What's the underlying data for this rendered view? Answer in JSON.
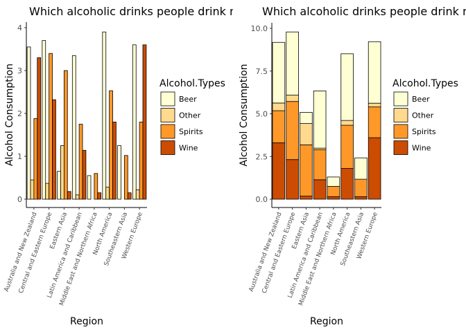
{
  "chart_data": [
    {
      "type": "bar",
      "position": "dodge",
      "title": "Which alcoholic drinks people drink most",
      "xlabel": "Region",
      "ylabel": "Alcohol Consumption",
      "ylim": [
        0,
        4
      ],
      "yticks": [
        "0",
        "1",
        "2",
        "3",
        "4"
      ],
      "categories": [
        "Australia and New Zealand",
        "Central and Eastern Europe",
        "Eastern Asia",
        "Latin America and Caribbean",
        "Middle East and Northern Africa",
        "North America",
        "Southeastern Asia",
        "Western Europe"
      ],
      "legend": {
        "title": "Alcohol.Types",
        "position": "right"
      },
      "series": [
        {
          "name": "Beer",
          "values": [
            3.55,
            3.7,
            0.65,
            3.35,
            0.55,
            3.9,
            1.25,
            3.6
          ]
        },
        {
          "name": "Other",
          "values": [
            0.45,
            0.37,
            1.25,
            0.1,
            0.0,
            0.28,
            0.0,
            0.22
          ]
        },
        {
          "name": "Spirits",
          "values": [
            1.88,
            3.4,
            3.0,
            1.75,
            0.6,
            2.53,
            1.02,
            1.8
          ]
        },
        {
          "name": "Wine",
          "values": [
            3.3,
            2.32,
            0.18,
            1.14,
            0.15,
            1.8,
            0.15,
            3.6
          ]
        }
      ]
    },
    {
      "type": "bar",
      "position": "stack",
      "title": "Which alcoholic drinks people drink most",
      "xlabel": "Region",
      "ylabel": "Alcohol Consumption",
      "ylim": [
        0,
        10
      ],
      "yticks": [
        "0.0",
        "2.5",
        "5.0",
        "7.5",
        "10.0"
      ],
      "categories": [
        "Australia and New Zealand",
        "Central and Eastern Europe",
        "Eastern Asia",
        "Latin America and Caribbean",
        "Middle East and Northern Africa",
        "North America",
        "Southeastern Asia",
        "Western Europe"
      ],
      "legend": {
        "title": "Alcohol.Types",
        "position": "right"
      },
      "series": [
        {
          "name": "Beer",
          "values": [
            3.55,
            3.7,
            0.65,
            3.35,
            0.55,
            3.9,
            1.25,
            3.6
          ]
        },
        {
          "name": "Other",
          "values": [
            0.45,
            0.37,
            1.25,
            0.1,
            0.0,
            0.28,
            0.0,
            0.22
          ]
        },
        {
          "name": "Spirits",
          "values": [
            1.88,
            3.4,
            3.0,
            1.75,
            0.6,
            2.53,
            1.02,
            1.8
          ]
        },
        {
          "name": "Wine",
          "values": [
            3.3,
            2.32,
            0.18,
            1.14,
            0.15,
            1.8,
            0.15,
            3.6
          ]
        }
      ]
    }
  ],
  "colors": {
    "Beer": "#ffffd4",
    "Other": "#fed98e",
    "Spirits": "#fe9929",
    "Wine": "#cc4c02"
  }
}
